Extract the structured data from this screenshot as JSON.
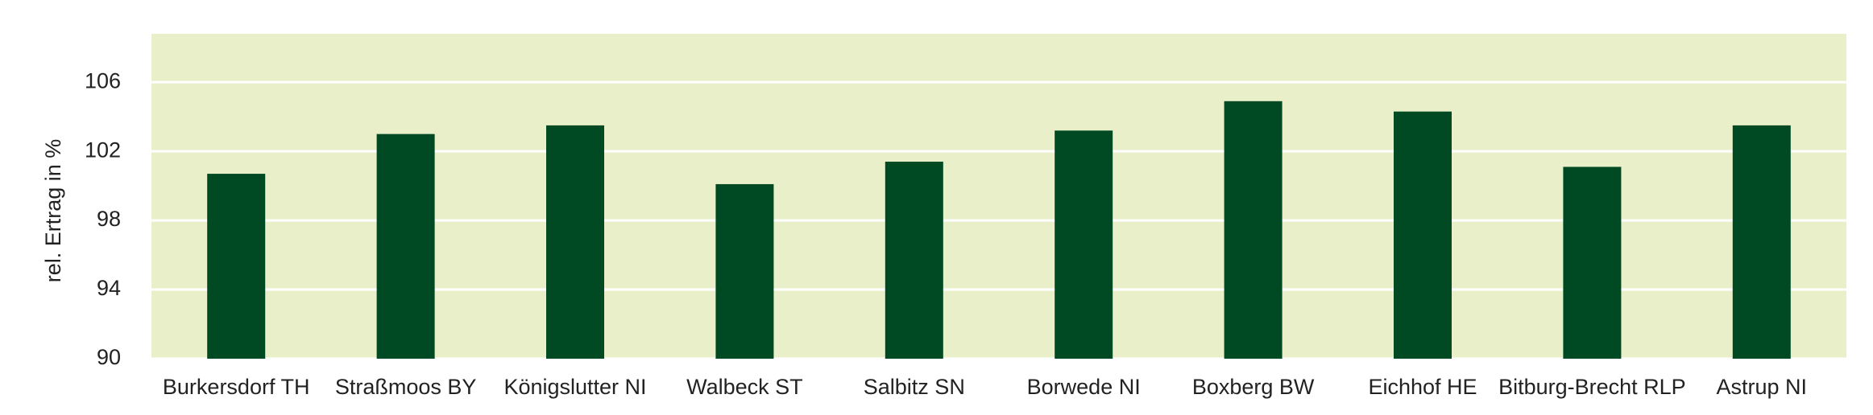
{
  "chart_data": {
    "type": "bar",
    "y_label": "rel. Ertrag in %",
    "categories": [
      "Burkersdorf TH",
      "Straßmoos BY",
      "Königslutter NI",
      "Walbeck ST",
      "Salbitz SN",
      "Borwede NI",
      "Boxberg BW",
      "Eichhof HE",
      "Bitburg-Brecht RLP",
      "Astrup NI"
    ],
    "values": [
      100.7,
      103.0,
      103.5,
      100.1,
      101.4,
      103.2,
      104.9,
      104.3,
      101.1,
      103.5
    ],
    "color": "#004a23",
    "background": "#e9efc8",
    "ylim": [
      90,
      108.8
    ],
    "yticks": [
      90,
      94,
      98,
      102,
      106
    ],
    "grid": true
  }
}
